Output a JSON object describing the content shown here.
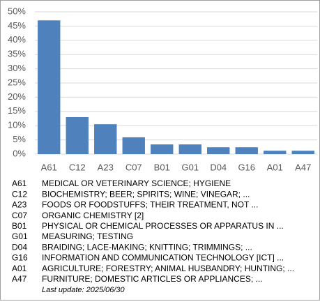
{
  "chart_data": {
    "type": "bar",
    "categories": [
      "A61",
      "C12",
      "A23",
      "C07",
      "B01",
      "G01",
      "D04",
      "G16",
      "A01",
      "A47"
    ],
    "values": [
      47,
      13,
      10.5,
      5.9,
      3.4,
      3.4,
      2.4,
      2.4,
      1.2,
      1.2
    ],
    "color": "#4f81bd",
    "ylim": [
      0,
      50
    ],
    "yticks": [
      {
        "value": 0,
        "label": "0%"
      },
      {
        "value": 5,
        "label": "5%"
      },
      {
        "value": 10,
        "label": "10%"
      },
      {
        "value": 15,
        "label": "15%"
      },
      {
        "value": 20,
        "label": "20%"
      },
      {
        "value": 25,
        "label": "25%"
      },
      {
        "value": 30,
        "label": "30%"
      },
      {
        "value": 35,
        "label": "35%"
      },
      {
        "value": 40,
        "label": "40%"
      },
      {
        "value": 45,
        "label": "45%"
      },
      {
        "value": 50,
        "label": "50%"
      }
    ],
    "grid": true
  },
  "legend_table": {
    "rows": [
      [
        "A61",
        "MEDICAL OR VETERINARY SCIENCE; HYGIENE"
      ],
      [
        "C12",
        "BIOCHEMISTRY; BEER; SPIRITS; WINE; VINEGAR; ..."
      ],
      [
        "A23",
        "FOODS OR FOODSTUFFS; THEIR TREATMENT, NOT ..."
      ],
      [
        "C07",
        "ORGANIC CHEMISTRY [2]"
      ],
      [
        "B01",
        "PHYSICAL OR CHEMICAL PROCESSES OR APPARATUS IN ..."
      ],
      [
        "G01",
        "MEASURING; TESTING"
      ],
      [
        "D04",
        "BRAIDING; LACE-MAKING; KNITTING; TRIMMINGS; ..."
      ],
      [
        "G16",
        "INFORMATION AND COMMUNICATION TECHNOLOGY [ICT] ..."
      ],
      [
        "A01",
        "AGRICULTURE; FORESTRY; ANIMAL HUSBANDRY; HUNTING; ..."
      ],
      [
        "A47",
        "FURNITURE; DOMESTIC ARTICLES OR APPLIANCES; ..."
      ]
    ]
  },
  "footer": "Last update:  2025/06/30"
}
